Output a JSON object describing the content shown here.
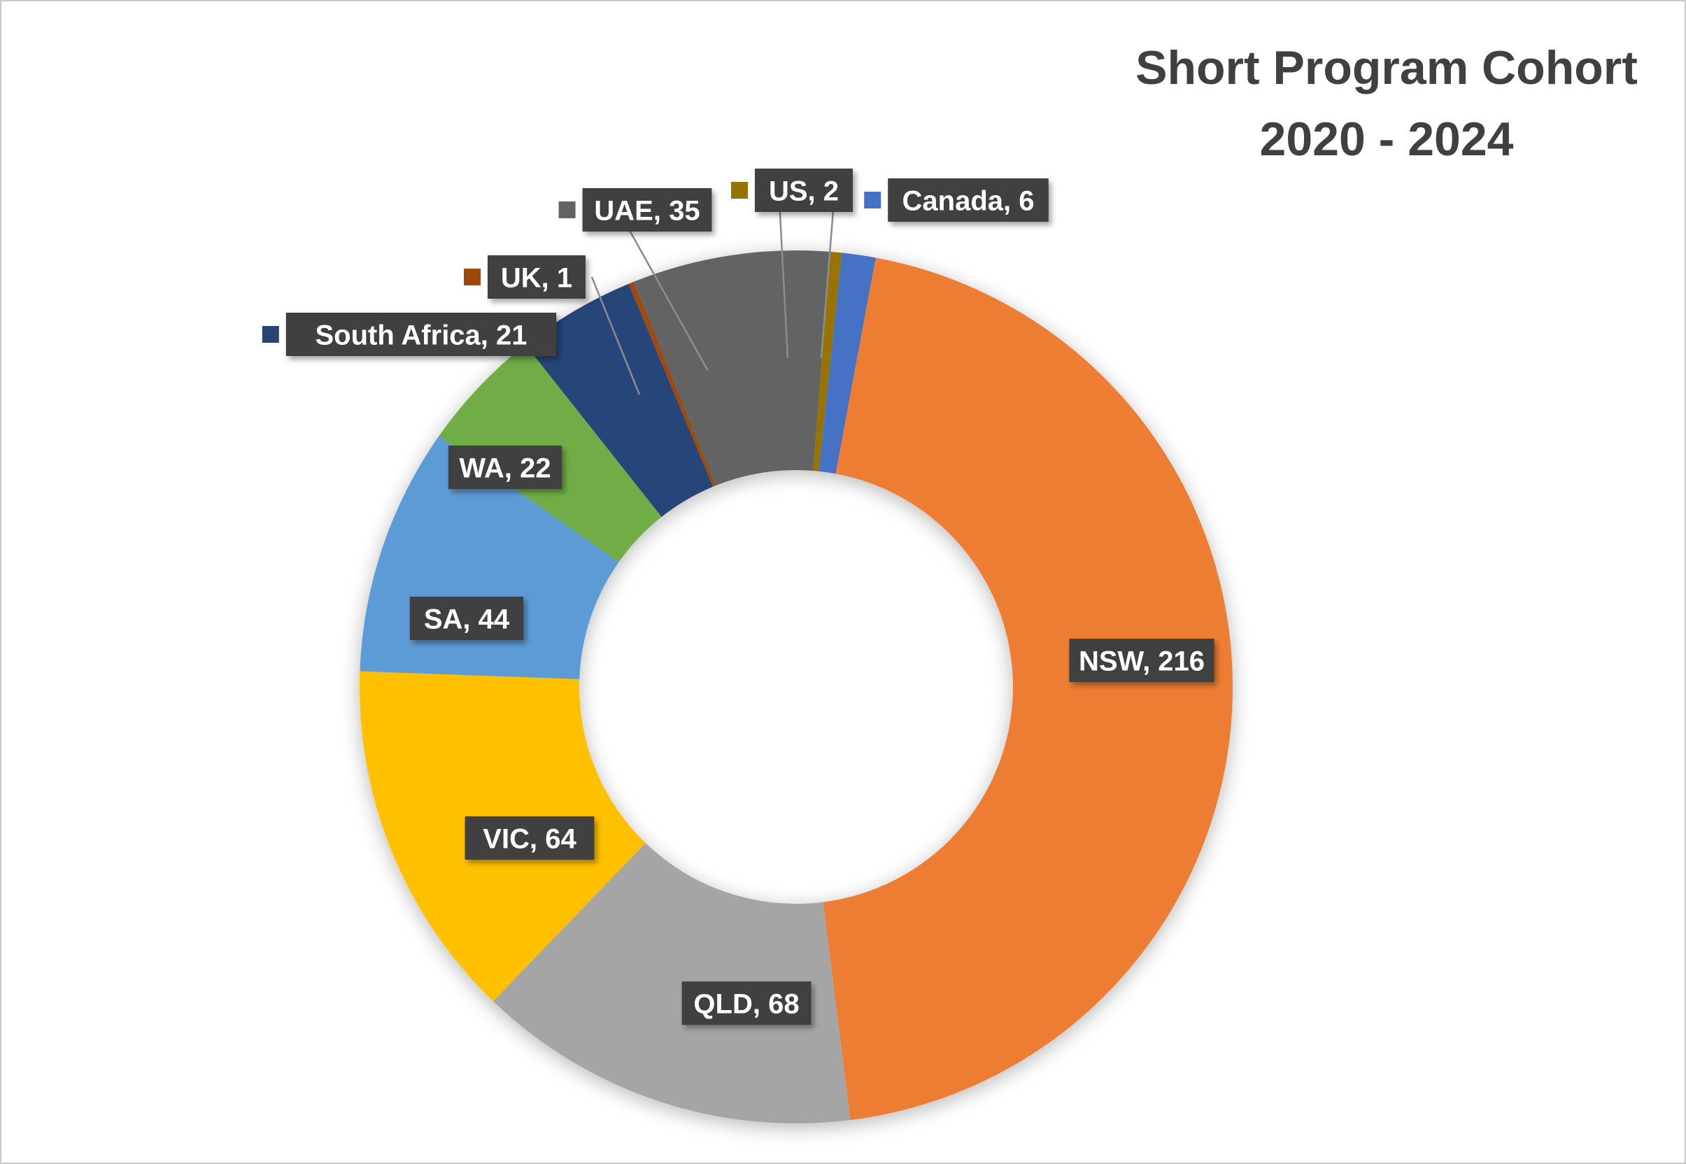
{
  "chart_data": {
    "type": "pie",
    "variant": "donut",
    "title_lines": [
      "Short Program Cohort",
      "2020 - 2024"
    ],
    "legend": "none",
    "slices": [
      {
        "label": "Canada",
        "value": 6,
        "text": "Canada, 6",
        "color": "#4472C4"
      },
      {
        "label": "NSW",
        "value": 216,
        "text": "NSW, 216",
        "color": "#ED7D31"
      },
      {
        "label": "QLD",
        "value": 68,
        "text": "QLD, 68",
        "color": "#A5A5A5"
      },
      {
        "label": "VIC",
        "value": 64,
        "text": "VIC, 64",
        "color": "#FFC000"
      },
      {
        "label": "SA",
        "value": 44,
        "text": "SA, 44",
        "color": "#5B9BD5"
      },
      {
        "label": "WA",
        "value": 22,
        "text": "WA, 22",
        "color": "#70AD47"
      },
      {
        "label": "South Africa",
        "value": 21,
        "text": "South Africa, 21",
        "color": "#264478"
      },
      {
        "label": "UK",
        "value": 1,
        "text": "UK, 1",
        "color": "#9E480E"
      },
      {
        "label": "UAE",
        "value": 35,
        "text": "UAE, 35",
        "color": "#636363"
      },
      {
        "label": "US",
        "value": 2,
        "text": "US, 2",
        "color": "#997300"
      }
    ]
  }
}
